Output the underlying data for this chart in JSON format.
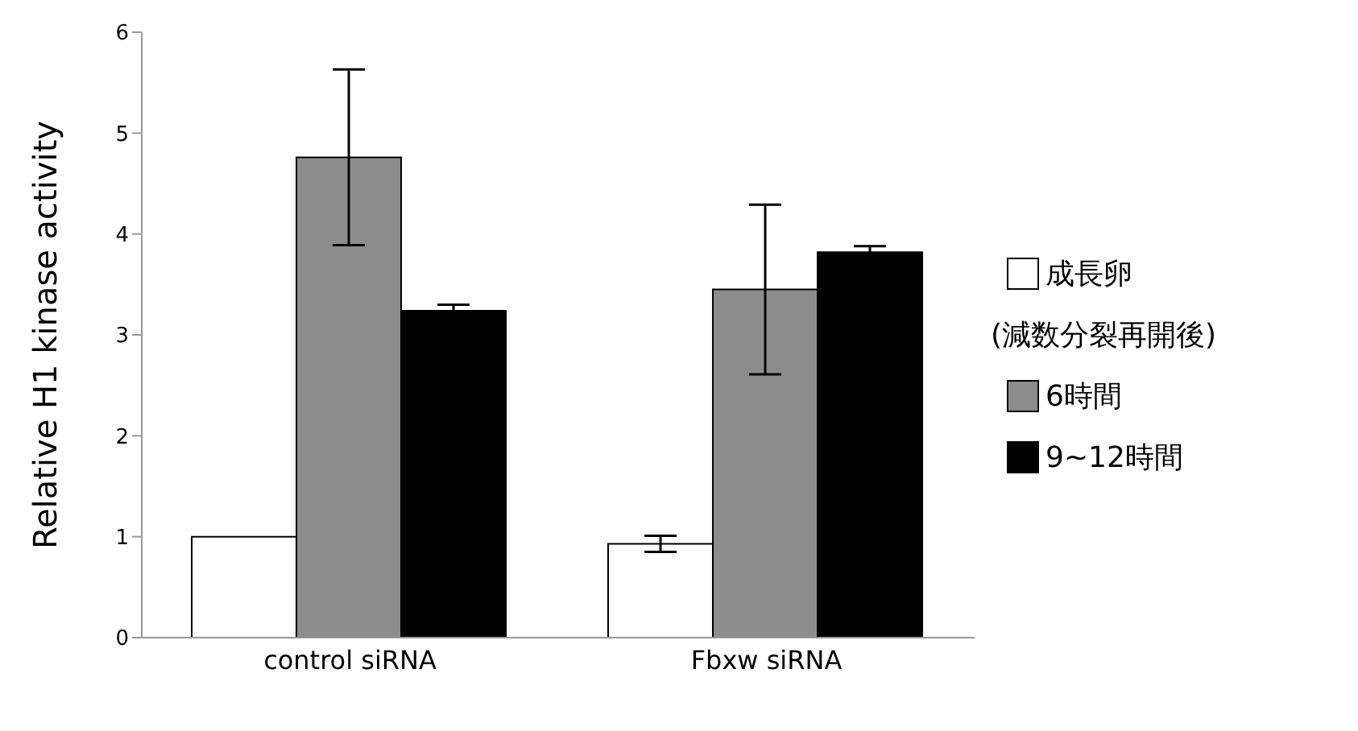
{
  "chart_data": {
    "type": "bar",
    "ylabel": "Relative H1 kinase activity",
    "categories": [
      "control siRNA",
      "Fbxw siRNA"
    ],
    "series": [
      {
        "name": "成長卵",
        "color": "#ffffff",
        "values": [
          1.0,
          0.93
        ],
        "errors": [
          null,
          0.08
        ]
      },
      {
        "name": "6時間",
        "color": "#8c8c8c",
        "values": [
          4.76,
          3.45
        ],
        "errors": [
          0.87,
          0.84
        ]
      },
      {
        "name": "9~12時間",
        "color": "#000000",
        "values": [
          3.24,
          3.82
        ],
        "errors": [
          0.06,
          0.06
        ]
      }
    ],
    "annotations": [
      "(減数分裂再開後)"
    ],
    "ylim": [
      0,
      6
    ],
    "yticks": [
      0,
      1,
      2,
      3,
      4,
      5,
      6
    ],
    "legend": "right"
  }
}
